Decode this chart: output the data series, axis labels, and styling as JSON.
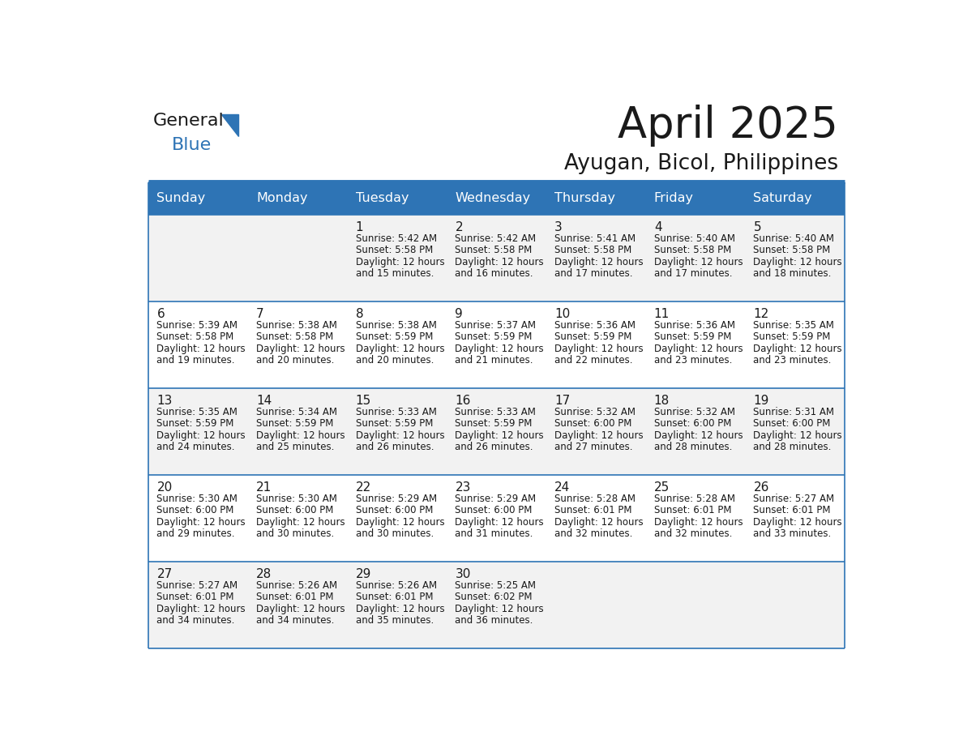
{
  "title": "April 2025",
  "subtitle": "Ayugan, Bicol, Philippines",
  "header_color": "#2E74B5",
  "header_text_color": "#FFFFFF",
  "row_colors": [
    "#F2F2F2",
    "#FFFFFF"
  ],
  "border_color": "#2E74B5",
  "text_color": "#1a1a1a",
  "day_headers": [
    "Sunday",
    "Monday",
    "Tuesday",
    "Wednesday",
    "Thursday",
    "Friday",
    "Saturday"
  ],
  "logo_general_color": "#1a1a1a",
  "logo_blue_color": "#2E74B5",
  "calendar_data": [
    [
      {
        "day": "",
        "sunrise": "",
        "sunset": "",
        "daylight": ""
      },
      {
        "day": "",
        "sunrise": "",
        "sunset": "",
        "daylight": ""
      },
      {
        "day": "1",
        "sunrise": "5:42 AM",
        "sunset": "5:58 PM",
        "daylight": "12 hours and 15 minutes."
      },
      {
        "day": "2",
        "sunrise": "5:42 AM",
        "sunset": "5:58 PM",
        "daylight": "12 hours and 16 minutes."
      },
      {
        "day": "3",
        "sunrise": "5:41 AM",
        "sunset": "5:58 PM",
        "daylight": "12 hours and 17 minutes."
      },
      {
        "day": "4",
        "sunrise": "5:40 AM",
        "sunset": "5:58 PM",
        "daylight": "12 hours and 17 minutes."
      },
      {
        "day": "5",
        "sunrise": "5:40 AM",
        "sunset": "5:58 PM",
        "daylight": "12 hours and 18 minutes."
      }
    ],
    [
      {
        "day": "6",
        "sunrise": "5:39 AM",
        "sunset": "5:58 PM",
        "daylight": "12 hours and 19 minutes."
      },
      {
        "day": "7",
        "sunrise": "5:38 AM",
        "sunset": "5:58 PM",
        "daylight": "12 hours and 20 minutes."
      },
      {
        "day": "8",
        "sunrise": "5:38 AM",
        "sunset": "5:59 PM",
        "daylight": "12 hours and 20 minutes."
      },
      {
        "day": "9",
        "sunrise": "5:37 AM",
        "sunset": "5:59 PM",
        "daylight": "12 hours and 21 minutes."
      },
      {
        "day": "10",
        "sunrise": "5:36 AM",
        "sunset": "5:59 PM",
        "daylight": "12 hours and 22 minutes."
      },
      {
        "day": "11",
        "sunrise": "5:36 AM",
        "sunset": "5:59 PM",
        "daylight": "12 hours and 23 minutes."
      },
      {
        "day": "12",
        "sunrise": "5:35 AM",
        "sunset": "5:59 PM",
        "daylight": "12 hours and 23 minutes."
      }
    ],
    [
      {
        "day": "13",
        "sunrise": "5:35 AM",
        "sunset": "5:59 PM",
        "daylight": "12 hours and 24 minutes."
      },
      {
        "day": "14",
        "sunrise": "5:34 AM",
        "sunset": "5:59 PM",
        "daylight": "12 hours and 25 minutes."
      },
      {
        "day": "15",
        "sunrise": "5:33 AM",
        "sunset": "5:59 PM",
        "daylight": "12 hours and 26 minutes."
      },
      {
        "day": "16",
        "sunrise": "5:33 AM",
        "sunset": "5:59 PM",
        "daylight": "12 hours and 26 minutes."
      },
      {
        "day": "17",
        "sunrise": "5:32 AM",
        "sunset": "6:00 PM",
        "daylight": "12 hours and 27 minutes."
      },
      {
        "day": "18",
        "sunrise": "5:32 AM",
        "sunset": "6:00 PM",
        "daylight": "12 hours and 28 minutes."
      },
      {
        "day": "19",
        "sunrise": "5:31 AM",
        "sunset": "6:00 PM",
        "daylight": "12 hours and 28 minutes."
      }
    ],
    [
      {
        "day": "20",
        "sunrise": "5:30 AM",
        "sunset": "6:00 PM",
        "daylight": "12 hours and 29 minutes."
      },
      {
        "day": "21",
        "sunrise": "5:30 AM",
        "sunset": "6:00 PM",
        "daylight": "12 hours and 30 minutes."
      },
      {
        "day": "22",
        "sunrise": "5:29 AM",
        "sunset": "6:00 PM",
        "daylight": "12 hours and 30 minutes."
      },
      {
        "day": "23",
        "sunrise": "5:29 AM",
        "sunset": "6:00 PM",
        "daylight": "12 hours and 31 minutes."
      },
      {
        "day": "24",
        "sunrise": "5:28 AM",
        "sunset": "6:01 PM",
        "daylight": "12 hours and 32 minutes."
      },
      {
        "day": "25",
        "sunrise": "5:28 AM",
        "sunset": "6:01 PM",
        "daylight": "12 hours and 32 minutes."
      },
      {
        "day": "26",
        "sunrise": "5:27 AM",
        "sunset": "6:01 PM",
        "daylight": "12 hours and 33 minutes."
      }
    ],
    [
      {
        "day": "27",
        "sunrise": "5:27 AM",
        "sunset": "6:01 PM",
        "daylight": "12 hours and 34 minutes."
      },
      {
        "day": "28",
        "sunrise": "5:26 AM",
        "sunset": "6:01 PM",
        "daylight": "12 hours and 34 minutes."
      },
      {
        "day": "29",
        "sunrise": "5:26 AM",
        "sunset": "6:01 PM",
        "daylight": "12 hours and 35 minutes."
      },
      {
        "day": "30",
        "sunrise": "5:25 AM",
        "sunset": "6:02 PM",
        "daylight": "12 hours and 36 minutes."
      },
      {
        "day": "",
        "sunrise": "",
        "sunset": "",
        "daylight": ""
      },
      {
        "day": "",
        "sunrise": "",
        "sunset": "",
        "daylight": ""
      },
      {
        "day": "",
        "sunrise": "",
        "sunset": "",
        "daylight": ""
      }
    ]
  ]
}
